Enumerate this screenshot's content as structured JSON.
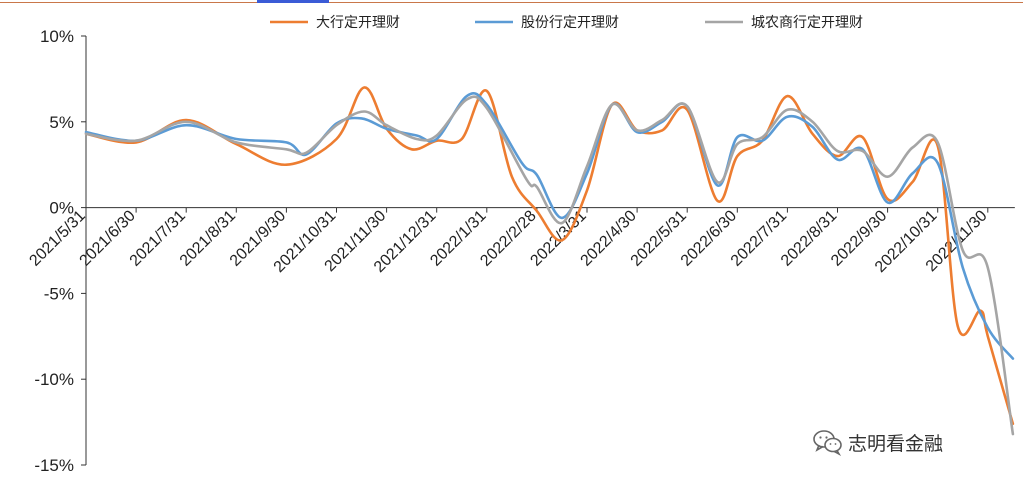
{
  "watermark": {
    "text": "志明看金融",
    "icon": "wechat-icon"
  },
  "chart_data": {
    "type": "line",
    "title": "",
    "xlabel": "",
    "ylabel": "",
    "ylim": [
      -15,
      10
    ],
    "yticks": [
      10,
      5,
      0,
      -5,
      -10,
      -15
    ],
    "ytick_labels": [
      "10%",
      "5%",
      "0%",
      "-5%",
      "-10%",
      "-15%"
    ],
    "x_tick_labels": [
      "2021/5/31",
      "2021/6/30",
      "2021/7/31",
      "2021/8/31",
      "2021/9/30",
      "2021/10/31",
      "2021/11/30",
      "2021/12/31",
      "2022/1/31",
      "2022/2/28",
      "2022/3/31",
      "2022/4/30",
      "2022/5/31",
      "2022/6/30",
      "2022/7/31",
      "2022/8/31",
      "2022/9/30",
      "2022/10/31",
      "2022/11/30"
    ],
    "x_positions": [
      0,
      1,
      2,
      3,
      4,
      5,
      6,
      7,
      8,
      9,
      10,
      11,
      12,
      13,
      14,
      15,
      16,
      17,
      18
    ],
    "legend_position": "top",
    "series": [
      {
        "name": "大行定开理财",
        "color": "#ed7d31",
        "points": [
          [
            0,
            4.3
          ],
          [
            1,
            3.8
          ],
          [
            2,
            5.1
          ],
          [
            3,
            3.7
          ],
          [
            4,
            2.5
          ],
          [
            5,
            4.0
          ],
          [
            5.55,
            7.0
          ],
          [
            6,
            4.6
          ],
          [
            6.5,
            3.4
          ],
          [
            7,
            3.9
          ],
          [
            7.5,
            4.0
          ],
          [
            8,
            6.8
          ],
          [
            8.5,
            1.8
          ],
          [
            9,
            -0.2
          ],
          [
            9.5,
            -1.9
          ],
          [
            10,
            1.0
          ],
          [
            10.5,
            6.0
          ],
          [
            11,
            4.5
          ],
          [
            11.5,
            4.5
          ],
          [
            12,
            5.7
          ],
          [
            12.6,
            0.4
          ],
          [
            13,
            3.0
          ],
          [
            13.5,
            3.9
          ],
          [
            14,
            6.5
          ],
          [
            14.5,
            4.3
          ],
          [
            15,
            3.0
          ],
          [
            15.5,
            4.1
          ],
          [
            16,
            0.5
          ],
          [
            16.5,
            1.5
          ],
          [
            17,
            3.6
          ],
          [
            17.4,
            -6.9
          ],
          [
            17.85,
            -6.0
          ],
          [
            18,
            -7.5
          ],
          [
            18.5,
            -12.6
          ]
        ]
      },
      {
        "name": "股份行定开理财",
        "color": "#5b9bd5",
        "points": [
          [
            0,
            4.4
          ],
          [
            1,
            3.9
          ],
          [
            2,
            4.8
          ],
          [
            3,
            4.0
          ],
          [
            4,
            3.8
          ],
          [
            4.4,
            3.1
          ],
          [
            5,
            4.9
          ],
          [
            5.5,
            5.2
          ],
          [
            6,
            4.6
          ],
          [
            6.6,
            4.2
          ],
          [
            7,
            4.0
          ],
          [
            7.6,
            6.5
          ],
          [
            8,
            6.0
          ],
          [
            8.7,
            2.6
          ],
          [
            9,
            1.9
          ],
          [
            9.5,
            -0.6
          ],
          [
            10,
            2.0
          ],
          [
            10.5,
            6.0
          ],
          [
            11,
            4.4
          ],
          [
            11.5,
            5.0
          ],
          [
            12,
            5.9
          ],
          [
            12.6,
            1.3
          ],
          [
            13,
            4.1
          ],
          [
            13.5,
            3.9
          ],
          [
            14,
            5.3
          ],
          [
            14.5,
            4.7
          ],
          [
            15,
            2.8
          ],
          [
            15.5,
            3.4
          ],
          [
            16,
            0.3
          ],
          [
            16.5,
            2.0
          ],
          [
            17,
            2.6
          ],
          [
            17.5,
            -3.5
          ],
          [
            18,
            -7.0
          ],
          [
            18.5,
            -8.8
          ]
        ]
      },
      {
        "name": "城农商行定开理财",
        "color": "#a5a5a5",
        "points": [
          [
            0,
            4.3
          ],
          [
            1,
            3.9
          ],
          [
            2,
            5.0
          ],
          [
            3,
            3.8
          ],
          [
            4,
            3.4
          ],
          [
            4.4,
            3.2
          ],
          [
            5,
            4.8
          ],
          [
            5.55,
            5.6
          ],
          [
            6,
            4.8
          ],
          [
            6.6,
            4.0
          ],
          [
            7,
            4.2
          ],
          [
            7.6,
            6.3
          ],
          [
            8,
            5.8
          ],
          [
            8.8,
            1.6
          ],
          [
            9,
            1.2
          ],
          [
            9.5,
            -0.9
          ],
          [
            10,
            2.4
          ],
          [
            10.5,
            6.0
          ],
          [
            11,
            4.5
          ],
          [
            11.5,
            5.1
          ],
          [
            12,
            5.9
          ],
          [
            12.6,
            1.5
          ],
          [
            13,
            3.7
          ],
          [
            13.5,
            4.1
          ],
          [
            14,
            5.7
          ],
          [
            14.5,
            5.0
          ],
          [
            15,
            3.3
          ],
          [
            15.5,
            3.3
          ],
          [
            16,
            1.8
          ],
          [
            16.5,
            3.5
          ],
          [
            17,
            3.8
          ],
          [
            17.5,
            -2.5
          ],
          [
            18,
            -3.5
          ],
          [
            18.5,
            -13.2
          ]
        ]
      }
    ]
  }
}
